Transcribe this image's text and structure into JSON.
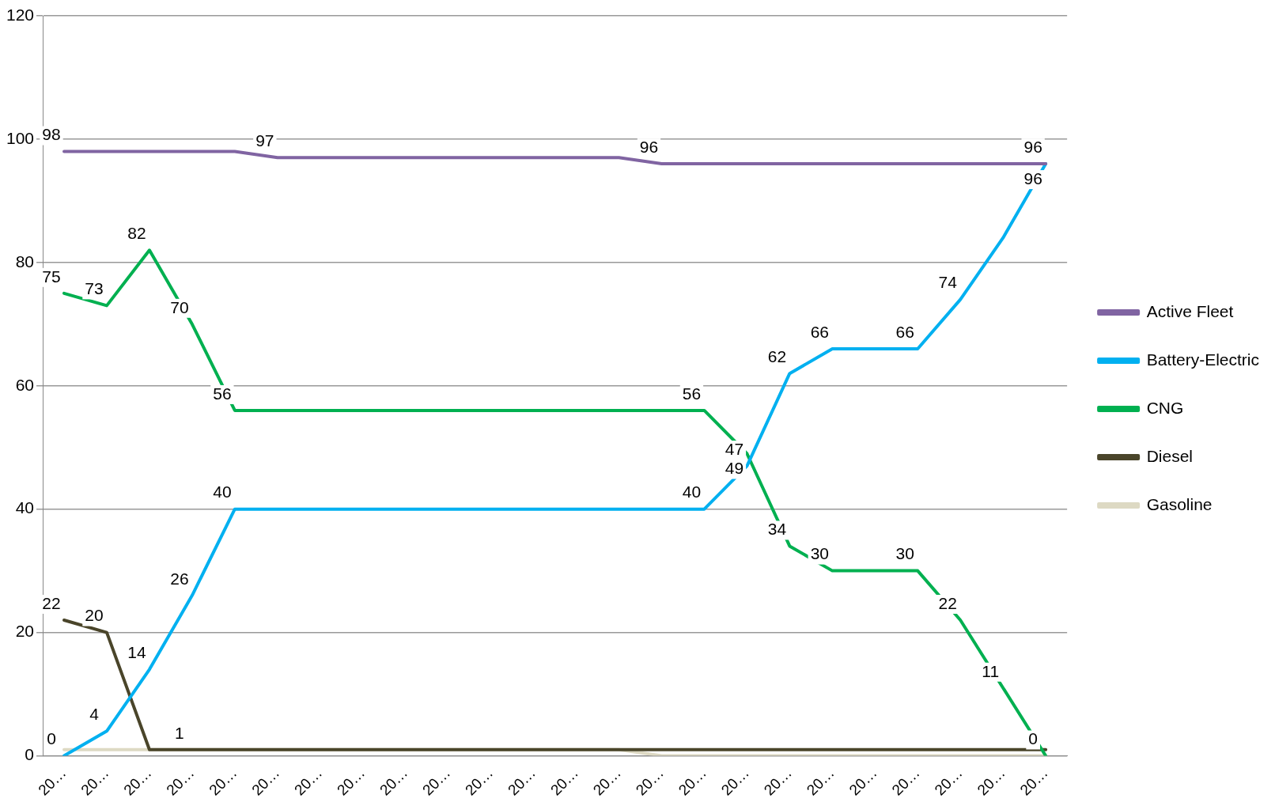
{
  "chart_data": {
    "type": "line",
    "categories": [
      "20…",
      "20…",
      "20…",
      "20…",
      "20…",
      "20…",
      "20…",
      "20…",
      "20…",
      "20…",
      "20…",
      "20…",
      "20…",
      "20…",
      "20…",
      "20…",
      "20…",
      "20…",
      "20…",
      "20…",
      "20…",
      "20…",
      "20…",
      "20…"
    ],
    "ylim": [
      0,
      120
    ],
    "yticks": [
      0,
      20,
      40,
      60,
      80,
      100,
      120
    ],
    "grid": "y",
    "legend": "right",
    "marker": "none",
    "line_style": "solid",
    "series": [
      {
        "name": "Active Fleet",
        "color": "#8064a2",
        "values": [
          98,
          98,
          98,
          98,
          98,
          97,
          97,
          97,
          97,
          97,
          97,
          97,
          97,
          97,
          96,
          96,
          96,
          96,
          96,
          96,
          96,
          96,
          96,
          96
        ],
        "value_labels": [
          "98",
          null,
          null,
          null,
          null,
          "97",
          null,
          null,
          null,
          null,
          null,
          null,
          null,
          null,
          "96",
          null,
          null,
          null,
          null,
          null,
          null,
          null,
          null,
          "96"
        ]
      },
      {
        "name": "Battery-Electric",
        "color": "#00b0f0",
        "values": [
          0,
          4,
          14,
          26,
          40,
          40,
          40,
          40,
          40,
          40,
          40,
          40,
          40,
          40,
          40,
          40,
          47,
          62,
          66,
          66,
          66,
          74,
          84,
          96
        ],
        "value_labels": [
          "0",
          "4",
          "14",
          "26",
          "40",
          null,
          null,
          null,
          null,
          null,
          null,
          null,
          null,
          null,
          null,
          "40",
          "47",
          "62",
          "66",
          null,
          "66",
          "74",
          null,
          "96"
        ]
      },
      {
        "name": "CNG",
        "color": "#00b050",
        "values": [
          75,
          73,
          82,
          70,
          56,
          56,
          56,
          56,
          56,
          56,
          56,
          56,
          56,
          56,
          56,
          56,
          49,
          34,
          30,
          30,
          30,
          22,
          11,
          0
        ],
        "value_labels": [
          "75",
          "73",
          "82",
          "70",
          "56",
          null,
          null,
          null,
          null,
          null,
          null,
          null,
          null,
          null,
          null,
          "56",
          "49",
          "34",
          "30",
          null,
          "30",
          "22",
          "11",
          "0"
        ]
      },
      {
        "name": "Diesel",
        "color": "#4a452a",
        "values": [
          22,
          20,
          1,
          1,
          1,
          1,
          1,
          1,
          1,
          1,
          1,
          1,
          1,
          1,
          1,
          1,
          1,
          1,
          1,
          1,
          1,
          1,
          1,
          1
        ],
        "value_labels": [
          "22",
          "20",
          null,
          "1",
          null,
          null,
          null,
          null,
          null,
          null,
          null,
          null,
          null,
          null,
          null,
          null,
          null,
          null,
          null,
          null,
          null,
          null,
          null,
          null
        ]
      },
      {
        "name": "Gasoline",
        "color": "#ddd9c3",
        "values": [
          1,
          1,
          1,
          1,
          1,
          1,
          1,
          1,
          1,
          1,
          1,
          1,
          1,
          1,
          0,
          0,
          0,
          0,
          0,
          0,
          0,
          0,
          0,
          0
        ]
      }
    ]
  }
}
